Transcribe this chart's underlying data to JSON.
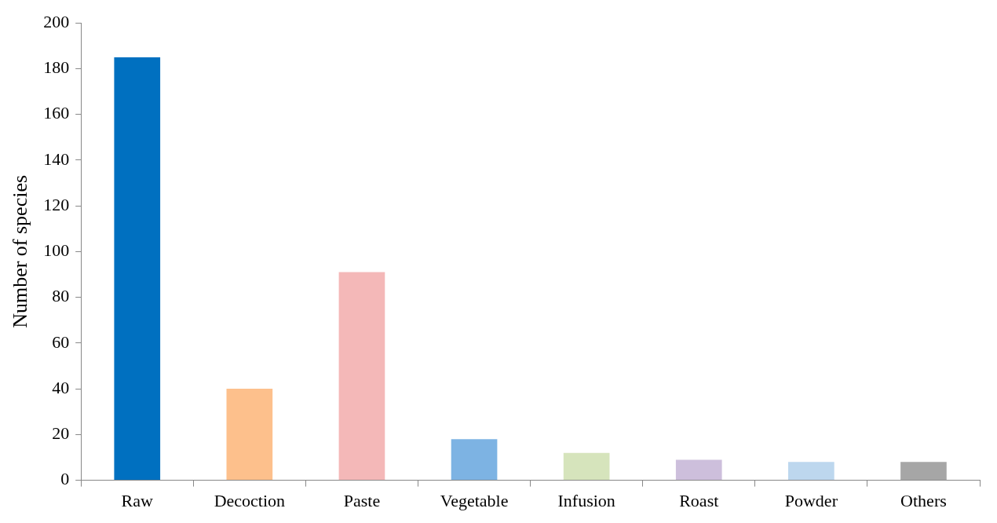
{
  "chart_data": {
    "type": "bar",
    "ylabel": "Number of species",
    "categories": [
      "Raw",
      "Decoction",
      "Paste",
      "Vegetable",
      "Infusion",
      "Roast",
      "Powder",
      "Others"
    ],
    "values": [
      185,
      40,
      91,
      18,
      12,
      9,
      8,
      8
    ],
    "colors": [
      "#0070c0",
      "#fdc08c",
      "#f4b8b8",
      "#7db3e3",
      "#d6e4bc",
      "#cdbfdc",
      "#bdd7ee",
      "#a6a6a6"
    ],
    "ylim": [
      0,
      200
    ],
    "yticks": [
      0,
      20,
      40,
      60,
      80,
      100,
      120,
      140,
      160,
      180,
      200
    ],
    "grid": false,
    "legend": false
  }
}
